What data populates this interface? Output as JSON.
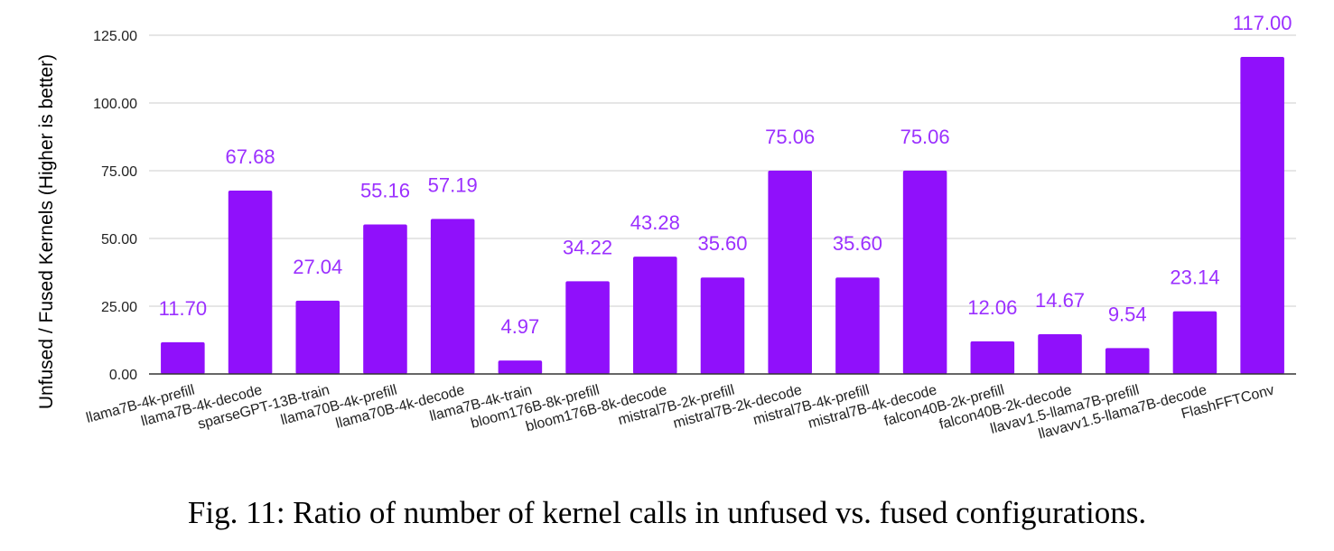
{
  "chart_data": {
    "type": "bar",
    "categories": [
      "llama7B-4k-prefill",
      "llama7B-4k-decode",
      "sparseGPT-13B-train",
      "llama70B-4k-prefill",
      "llama70B-4k-decode",
      "llama7B-4k-train",
      "bloom176B-8k-prefill",
      "bloom176B-8k-decode",
      "mistral7B-2k-prefill",
      "mistral7B-2k-decode",
      "mistral7B-4k-prefill",
      "mistral7B-4k-decode",
      "falcon40B-2k-prefill",
      "falcon40B-2k-decode",
      "llavav1.5-llama7B-prefill",
      "llavavv1.5-llama7B-decode",
      "FlashFFTConv"
    ],
    "values": [
      11.7,
      67.68,
      27.04,
      55.16,
      57.19,
      4.97,
      34.22,
      43.28,
      35.6,
      75.06,
      35.6,
      75.06,
      12.06,
      14.67,
      9.54,
      23.14,
      117.0
    ],
    "value_labels": [
      "11.70",
      "67.68",
      "27.04",
      "55.16",
      "57.19",
      "4.97",
      "34.22",
      "43.28",
      "35.60",
      "75.06",
      "35.60",
      "75.06",
      "12.06",
      "14.67",
      "9.54",
      "23.14",
      "117.00"
    ],
    "ylabel": "Unfused / Fused Kernels (Higher is better)",
    "xlabel": "",
    "ylim": [
      0,
      125
    ],
    "yticks": [
      0,
      25,
      50,
      75,
      100,
      125
    ],
    "ytick_labels": [
      "0.00",
      "25.00",
      "50.00",
      "75.00",
      "100.00",
      "125.00"
    ],
    "grid": true,
    "legend": "none",
    "bar_color": "#9010fb",
    "label_color": "#9b30ff"
  },
  "caption": "Fig. 11: Ratio of number of kernel calls in unfused vs. fused configurations."
}
